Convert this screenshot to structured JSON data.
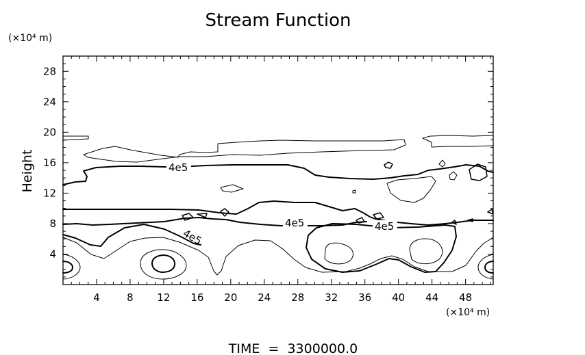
{
  "chart_data": {
    "type": "contour",
    "title": "Stream Function",
    "ylabel": "Height",
    "y_units": "(×10⁴ m)",
    "x_units": "(×10⁴ m)",
    "xticks": [
      "4",
      "8",
      "12",
      "16",
      "20",
      "24",
      "28",
      "32",
      "36",
      "40",
      "44",
      "48"
    ],
    "yticks": [
      "4",
      "8",
      "12",
      "16",
      "20",
      "24",
      "28"
    ],
    "xlim": [
      0,
      51.3
    ],
    "ylim": [
      0,
      30
    ],
    "contour_labels": [
      "4e5",
      "4e5",
      "4e5",
      "4e5"
    ],
    "footer": "TIME  =  3300000.0"
  }
}
